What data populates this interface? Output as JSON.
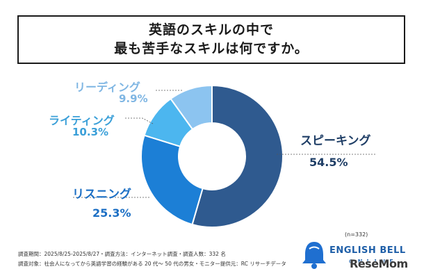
{
  "title": {
    "line1": "英語のスキルの中で",
    "line2": "最も苦手なスキルは何ですか。"
  },
  "chart_data": {
    "type": "pie",
    "donut": true,
    "slices": [
      {
        "label": "スピーキング",
        "value_text": "54.5%",
        "value": 54.5,
        "color": "#2f5a8f",
        "label_color": "#1f3e66"
      },
      {
        "label": "リスニング",
        "value_text": "25.3%",
        "value": 25.3,
        "color": "#1c7fd6",
        "label_color": "#1c6fc4"
      },
      {
        "label": "ライティング",
        "value_text": "10.3%",
        "value": 10.3,
        "color": "#4cb6ef",
        "label_color": "#3a9fd8"
      },
      {
        "label": "リーディング",
        "value_text": "9.9%",
        "value": 9.9,
        "color": "#8cc4f0",
        "label_color": "#7fb6e3"
      }
    ]
  },
  "sample_size": "(n=332)",
  "footer": {
    "line1": "調査期間：2025/8/25-2025/8/27・調査方法：インターネット調査・調査人数：332 名",
    "line2": "調査対象：社会人になってから英語学習の経験がある 20 代〜 50 代の男女・モニター提供元：RC リサーチデータ"
  },
  "logo": {
    "name": "ENGLISH BELL",
    "sub": "ONLINE"
  },
  "watermark": "ReseMom"
}
